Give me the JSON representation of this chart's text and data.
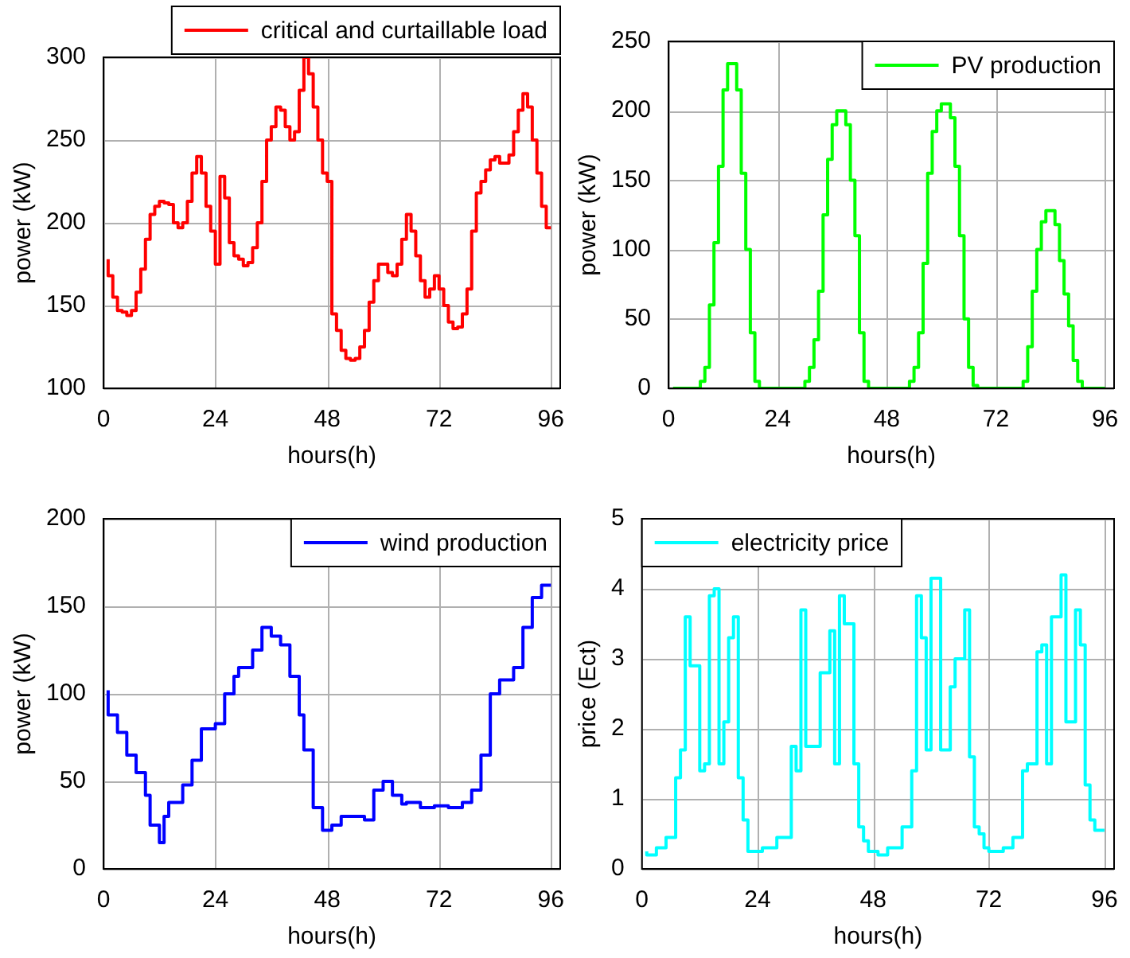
{
  "chart_data": [
    {
      "type": "step",
      "xlabel": "hours(h)",
      "ylabel": "power (kW)",
      "xlim": [
        0,
        98
      ],
      "xticks": [
        0,
        24,
        48,
        72,
        96
      ],
      "ylim": [
        100,
        300
      ],
      "yticks": [
        100,
        150,
        200,
        250,
        300
      ],
      "grid": true,
      "legend": "top",
      "line_style": "solid",
      "series": [
        {
          "name": "critical and curtaillable load",
          "color": "#ff0000",
          "x": [
            1,
            2,
            3,
            4,
            5,
            6,
            7,
            8,
            9,
            10,
            11,
            12,
            13,
            14,
            15,
            16,
            17,
            18,
            19,
            20,
            21,
            22,
            23,
            24,
            25,
            26,
            27,
            28,
            29,
            30,
            31,
            32,
            33,
            34,
            35,
            36,
            37,
            38,
            39,
            40,
            41,
            42,
            43,
            44,
            45,
            46,
            47,
            48,
            49,
            50,
            51,
            52,
            53,
            54,
            55,
            56,
            57,
            58,
            59,
            60,
            61,
            62,
            63,
            64,
            65,
            66,
            67,
            68,
            69,
            70,
            71,
            72,
            73,
            74,
            75,
            76,
            77,
            78,
            79,
            80,
            81,
            82,
            83,
            84,
            85,
            86,
            87,
            88,
            89,
            90,
            91,
            92,
            93,
            94,
            95,
            96
          ],
          "values": [
            178,
            168,
            155,
            147,
            146,
            144,
            147,
            158,
            172,
            190,
            205,
            210,
            213,
            212,
            211,
            200,
            197,
            200,
            213,
            230,
            240,
            230,
            210,
            195,
            175,
            228,
            215,
            188,
            180,
            178,
            174,
            176,
            185,
            200,
            225,
            250,
            258,
            270,
            268,
            258,
            250,
            255,
            280,
            300,
            290,
            270,
            250,
            230,
            225,
            145,
            135,
            123,
            118,
            117,
            118,
            125,
            135,
            152,
            165,
            175,
            175,
            170,
            168,
            175,
            190,
            205,
            195,
            180,
            165,
            155,
            160,
            168,
            160,
            150,
            140,
            136,
            137,
            145,
            160,
            195,
            218,
            225,
            232,
            238,
            240,
            236,
            236,
            241,
            255,
            268,
            278,
            270,
            250,
            230,
            210,
            197
          ]
        }
      ]
    },
    {
      "type": "step",
      "xlabel": "hours(h)",
      "ylabel": "power (kW)",
      "xlim": [
        0,
        98
      ],
      "xticks": [
        0,
        24,
        48,
        72,
        96
      ],
      "ylim": [
        0,
        250
      ],
      "yticks": [
        0,
        50,
        100,
        150,
        200,
        250
      ],
      "grid": true,
      "legend": "top right",
      "line_style": "solid",
      "series": [
        {
          "name": "PV production",
          "color": "#00ff00",
          "x": [
            1,
            2,
            3,
            4,
            5,
            6,
            7,
            8,
            9,
            10,
            11,
            12,
            13,
            14,
            15,
            16,
            17,
            18,
            19,
            20,
            21,
            22,
            23,
            24,
            25,
            26,
            27,
            28,
            29,
            30,
            31,
            32,
            33,
            34,
            35,
            36,
            37,
            38,
            39,
            40,
            41,
            42,
            43,
            44,
            45,
            46,
            47,
            48,
            49,
            50,
            51,
            52,
            53,
            54,
            55,
            56,
            57,
            58,
            59,
            60,
            61,
            62,
            63,
            64,
            65,
            66,
            67,
            68,
            69,
            70,
            71,
            72,
            73,
            74,
            75,
            76,
            77,
            78,
            79,
            80,
            81,
            82,
            83,
            84,
            85,
            86,
            87,
            88,
            89,
            90,
            91,
            92,
            93,
            94,
            95,
            96
          ],
          "values": [
            0,
            0,
            0,
            0,
            0,
            0,
            0,
            5,
            15,
            60,
            105,
            160,
            215,
            234,
            234,
            215,
            155,
            100,
            40,
            5,
            0,
            0,
            0,
            0,
            0,
            0,
            0,
            0,
            0,
            0,
            5,
            15,
            35,
            70,
            125,
            165,
            190,
            200,
            200,
            190,
            150,
            110,
            40,
            5,
            0,
            0,
            0,
            0,
            0,
            0,
            0,
            0,
            0,
            5,
            15,
            40,
            90,
            155,
            185,
            200,
            205,
            205,
            195,
            160,
            110,
            50,
            15,
            2,
            0,
            0,
            0,
            0,
            0,
            0,
            0,
            0,
            0,
            0,
            5,
            30,
            70,
            100,
            120,
            128,
            128,
            118,
            92,
            68,
            45,
            20,
            5,
            0,
            0,
            0,
            0,
            0
          ]
        }
      ]
    },
    {
      "type": "step",
      "xlabel": "hours(h)",
      "ylabel": "power (kW)",
      "xlim": [
        0,
        98
      ],
      "xticks": [
        0,
        24,
        48,
        72,
        96
      ],
      "ylim": [
        0,
        200
      ],
      "yticks": [
        0,
        50,
        100,
        150,
        200
      ],
      "grid": true,
      "legend": "top right",
      "line_style": "solid",
      "series": [
        {
          "name": "wind production",
          "color": "#0000ff",
          "x": [
            1,
            3,
            5,
            7,
            9,
            10,
            12,
            13,
            14,
            17,
            19,
            21,
            24,
            26,
            28,
            29,
            32,
            34,
            36,
            38,
            40,
            42,
            43,
            45,
            47,
            49,
            51,
            53,
            56,
            58,
            60,
            62,
            64,
            65,
            68,
            71,
            74,
            77,
            79,
            81,
            83,
            85,
            88,
            90,
            92,
            94,
            95,
            96
          ],
          "values": [
            102,
            88,
            78,
            65,
            55,
            42,
            25,
            15,
            30,
            38,
            48,
            62,
            80,
            83,
            100,
            110,
            115,
            125,
            138,
            133,
            128,
            110,
            88,
            68,
            35,
            22,
            25,
            30,
            30,
            28,
            45,
            50,
            42,
            37,
            38,
            35,
            36,
            35,
            38,
            45,
            65,
            100,
            108,
            115,
            138,
            155,
            162,
            162
          ]
        }
      ]
    },
    {
      "type": "step",
      "xlabel": "hours(h)",
      "ylabel": "price (Ect)",
      "xlim": [
        0,
        98
      ],
      "xticks": [
        0,
        24,
        48,
        72,
        96
      ],
      "ylim": [
        0,
        5
      ],
      "yticks": [
        0,
        1,
        2,
        3,
        4,
        5
      ],
      "grid": true,
      "legend": "top left",
      "line_style": "solid",
      "series": [
        {
          "name": "electricity price",
          "color": "#00ffff",
          "x": [
            1,
            3,
            5,
            7,
            8,
            9,
            10,
            12,
            13,
            14,
            15,
            16,
            17,
            18,
            19,
            20,
            21,
            22,
            25,
            28,
            31,
            32,
            33,
            34,
            37,
            39,
            40,
            41,
            42,
            44,
            45,
            46,
            47,
            49,
            51,
            54,
            56,
            57,
            58,
            59,
            60,
            62,
            64,
            65,
            67,
            68,
            69,
            70,
            71,
            72,
            75,
            77,
            79,
            80,
            82,
            83,
            84,
            85,
            87,
            88,
            90,
            91,
            92,
            93,
            94,
            95,
            96
          ],
          "values": [
            0.25,
            0.2,
            0.3,
            0.45,
            1.3,
            1.7,
            3.6,
            2.9,
            1.4,
            1.5,
            3.9,
            4.0,
            1.5,
            2.1,
            3.3,
            3.6,
            1.3,
            0.7,
            0.25,
            0.3,
            0.45,
            1.75,
            1.4,
            3.7,
            1.75,
            2.8,
            3.4,
            1.5,
            3.9,
            3.5,
            1.5,
            0.6,
            0.4,
            0.25,
            0.2,
            0.3,
            0.6,
            1.4,
            3.9,
            3.3,
            1.7,
            4.15,
            1.7,
            2.6,
            3.0,
            3.7,
            1.6,
            0.6,
            0.5,
            0.3,
            0.25,
            0.3,
            0.45,
            1.4,
            1.5,
            3.1,
            3.2,
            1.5,
            3.6,
            4.2,
            2.1,
            3.7,
            3.2,
            1.2,
            0.7,
            0.55,
            0.55
          ]
        }
      ]
    }
  ]
}
